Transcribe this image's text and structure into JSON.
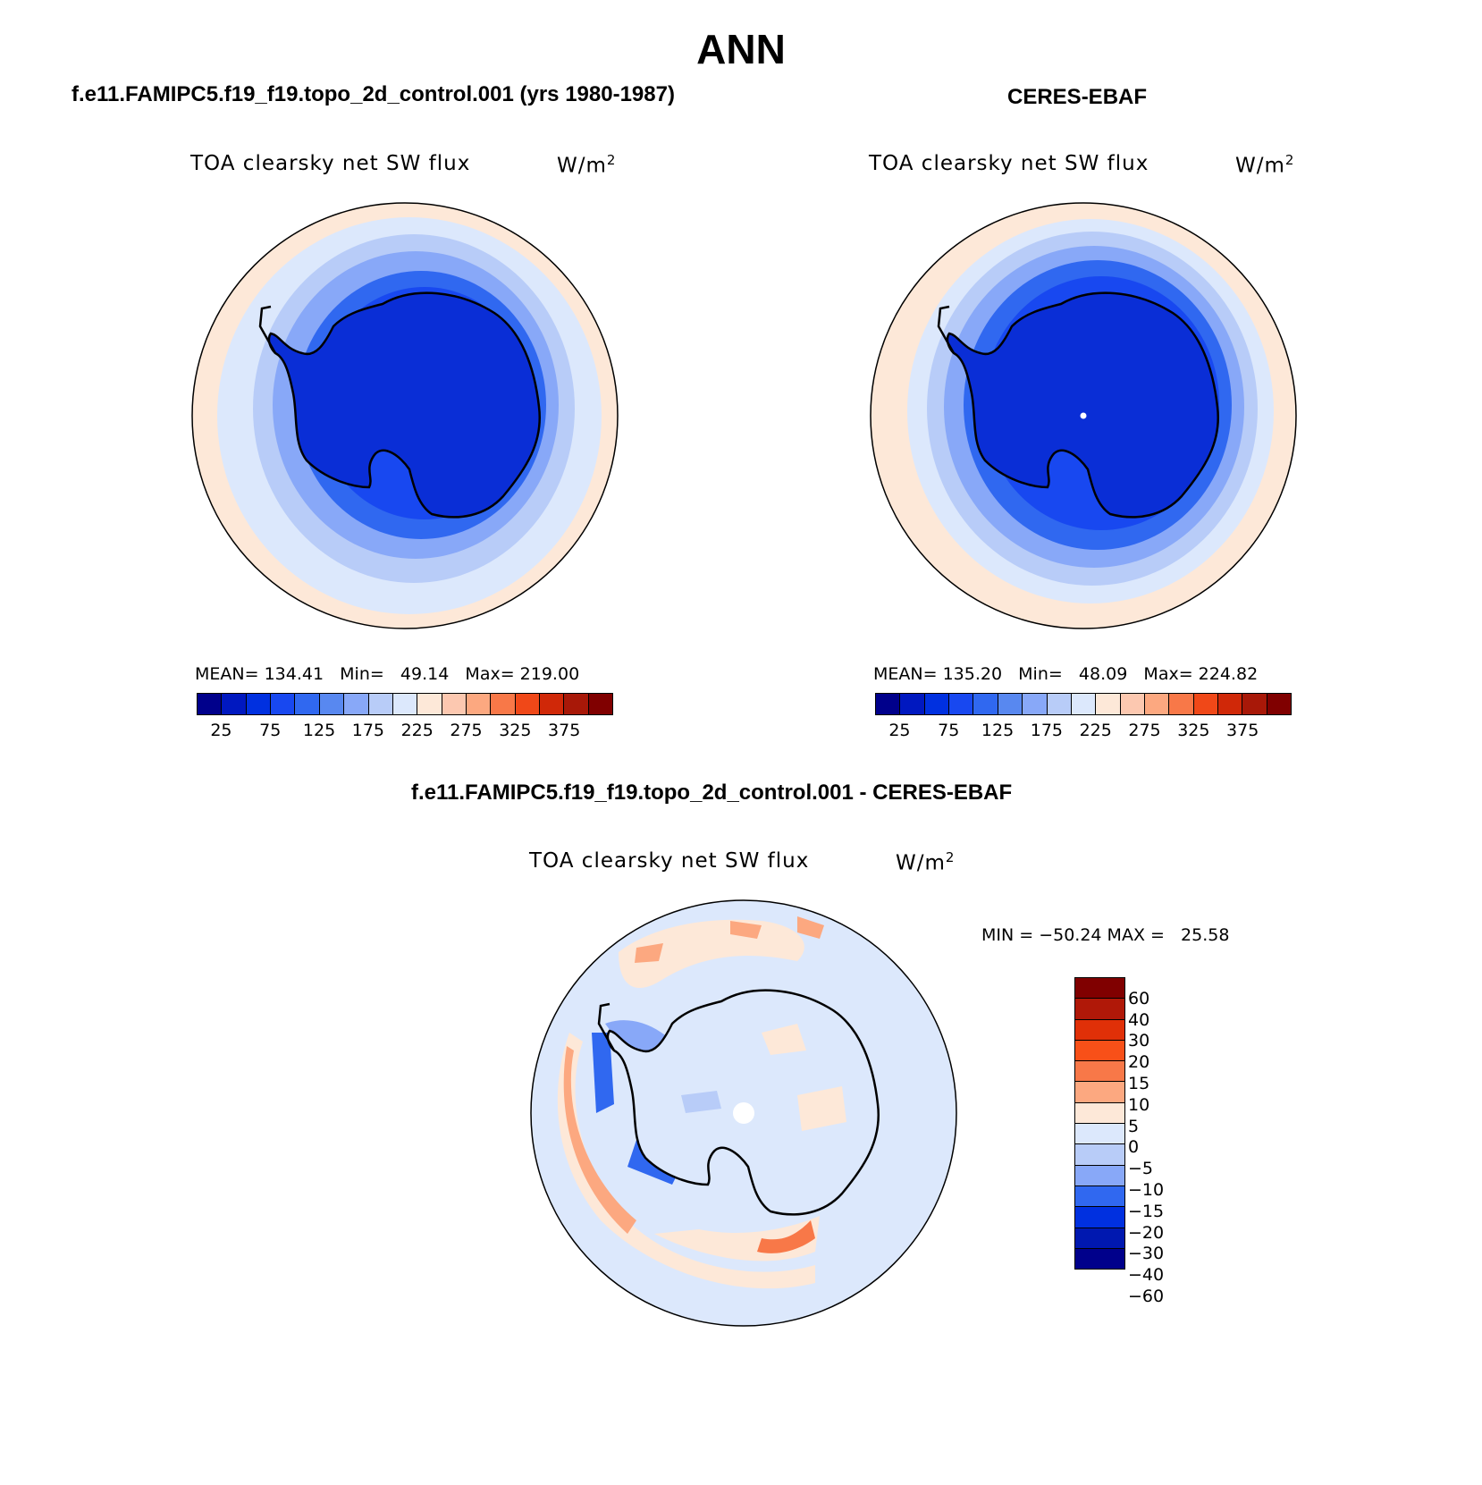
{
  "title": "ANN",
  "panels": [
    {
      "id": "model",
      "header": "f.e11.FAMIPC5.f19_f19.topo_2d_control.001 (yrs 1980-1987)",
      "variable": "TOA clearsky net SW flux",
      "unit_base": "W/m",
      "unit_exp": "2",
      "stats": "MEAN= 134.41   Min=   49.14   Max= 219.00"
    },
    {
      "id": "obs",
      "header": "CERES-EBAF",
      "variable": "TOA clearsky net SW flux",
      "unit_base": "W/m",
      "unit_exp": "2",
      "stats": "MEAN= 135.20   Min=   48.09   Max= 224.82"
    }
  ],
  "field_colorbar": {
    "colors": [
      "#00008b",
      "#0018c0",
      "#0030e0",
      "#1848f0",
      "#3068f0",
      "#5888f0",
      "#88a8f8",
      "#b8ccf8",
      "#dce8fc",
      "#fde8d8",
      "#fcc8b0",
      "#fca880",
      "#f87848",
      "#f04818",
      "#d02808",
      "#a81808",
      "#800000"
    ],
    "tick_labels": [
      "25",
      "75",
      "125",
      "175",
      "225",
      "275",
      "325",
      "375"
    ]
  },
  "difference": {
    "header": "f.e11.FAMIPC5.f19_f19.topo_2d_control.001 - CERES-EBAF",
    "variable": "TOA clearsky net SW flux",
    "unit_base": "W/m",
    "unit_exp": "2",
    "minmax": "MIN = −50.24 MAX =   25.58",
    "colors": [
      "#800000",
      "#b01808",
      "#e03008",
      "#f85018",
      "#f87848",
      "#fca880",
      "#fde8d8",
      "#dce8fc",
      "#b8ccf8",
      "#88a8f8",
      "#3068f0",
      "#0030e0",
      "#0018b0",
      "#00008b"
    ],
    "tick_labels": [
      "60",
      "40",
      "30",
      "20",
      "15",
      "10",
      "5",
      "0",
      "−5",
      "−10",
      "−15",
      "−20",
      "−30",
      "−40",
      "−60"
    ]
  },
  "colors": {
    "antarctica_fill": "#0a2ed6",
    "outer_ring": "#fde8d8",
    "diff_background": "#dce8fc"
  }
}
